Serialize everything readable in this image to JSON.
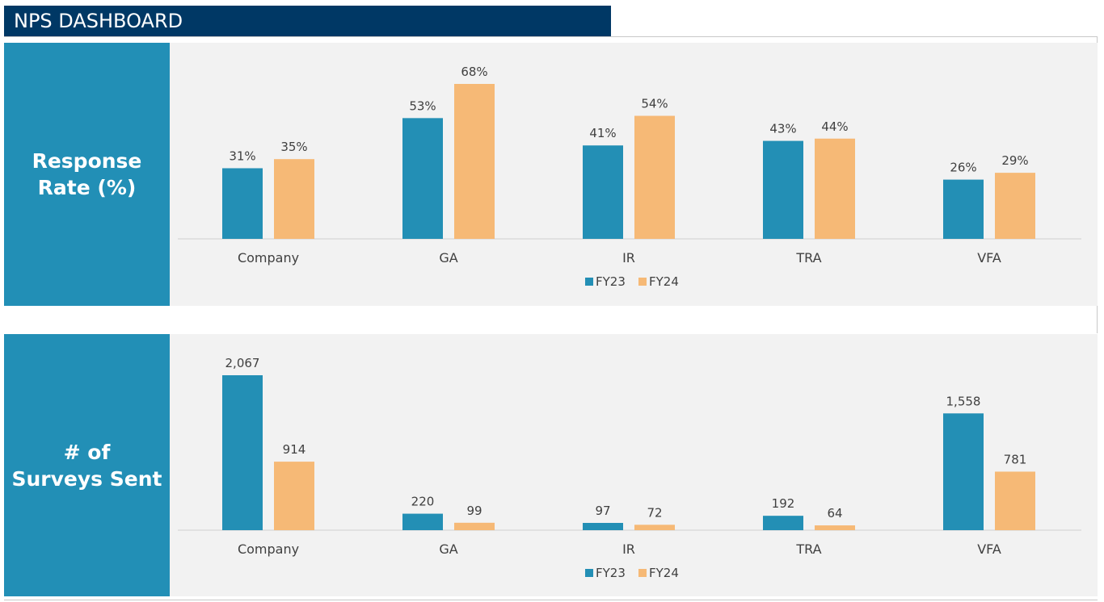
{
  "header": {
    "title": "NPS DASHBOARD"
  },
  "colors": {
    "fy23": "#238fb5",
    "fy24": "#f6b976",
    "sidebar": "#228fb6",
    "header": "#003865",
    "panel": "#f2f2f2"
  },
  "panels": [
    {
      "label_line1": "Response",
      "label_line2": "Rate (%)"
    },
    {
      "label_line1": "# of",
      "label_line2": "Surveys Sent"
    }
  ],
  "chart_data": [
    {
      "type": "bar",
      "categories": [
        "Company",
        "GA",
        "IR",
        "TRA",
        "VFA"
      ],
      "series": [
        {
          "name": "FY23",
          "values": [
            31,
            53,
            41,
            43,
            26
          ],
          "labels": [
            "31%",
            "53%",
            "41%",
            "43%",
            "26%"
          ]
        },
        {
          "name": "FY24",
          "values": [
            35,
            68,
            54,
            44,
            29
          ],
          "labels": [
            "35%",
            "68%",
            "54%",
            "44%",
            "29%"
          ]
        }
      ],
      "ylim": [
        0,
        68
      ],
      "legend": "bottom",
      "grid": false
    },
    {
      "type": "bar",
      "categories": [
        "Company",
        "GA",
        "IR",
        "TRA",
        "VFA"
      ],
      "series": [
        {
          "name": "FY23",
          "values": [
            2067,
            220,
            97,
            192,
            1558
          ],
          "labels": [
            "2,067",
            "220",
            "97",
            "192",
            "1,558"
          ]
        },
        {
          "name": "FY24",
          "values": [
            914,
            99,
            72,
            64,
            781
          ],
          "labels": [
            "914",
            "99",
            "72",
            "64",
            "781"
          ]
        }
      ],
      "ylim": [
        0,
        2067
      ],
      "legend": "bottom",
      "grid": false
    }
  ]
}
